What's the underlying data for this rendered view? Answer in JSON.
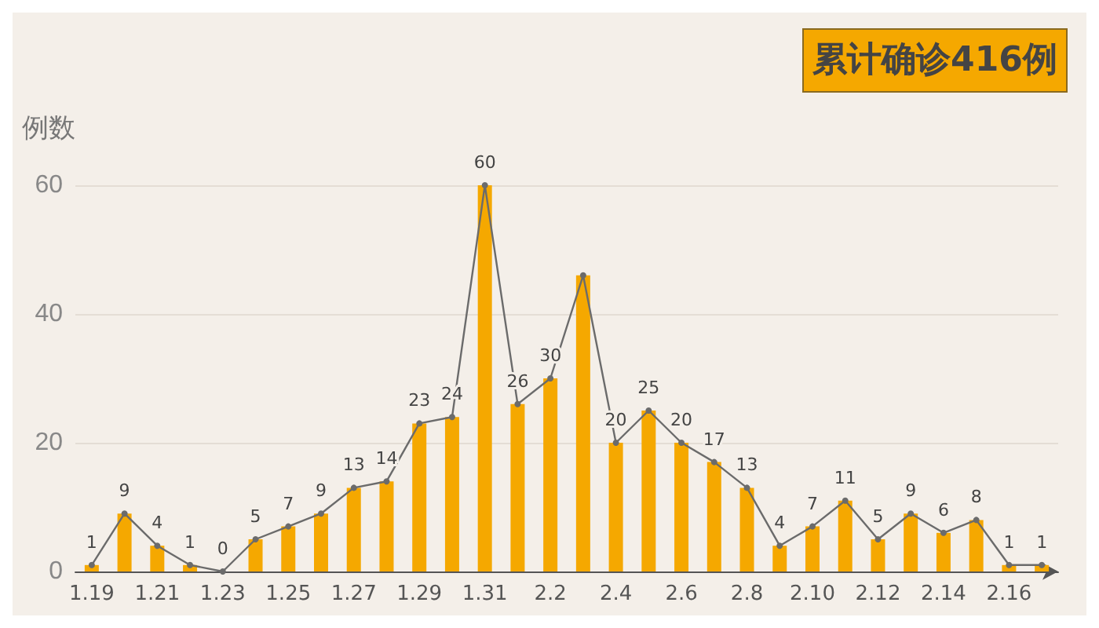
{
  "chart_data": {
    "type": "bar",
    "ylabel": "例数",
    "annotations": [
      "累计确诊416例"
    ],
    "categories": [
      "1.19",
      null,
      "1.21",
      null,
      "1.23",
      null,
      "1.25",
      null,
      "1.27",
      null,
      "1.29",
      null,
      "1.31",
      null,
      "2.2",
      null,
      "2.4",
      null,
      "2.6",
      null,
      "2.8",
      null,
      "2.10",
      null,
      "2.12",
      null,
      "2.14",
      null,
      "2.16",
      null
    ],
    "series": [
      {
        "color": "#f5a800",
        "values": [
          1,
          9,
          4,
          1,
          0,
          5,
          7,
          9,
          13,
          14,
          23,
          24,
          60,
          26,
          30,
          46,
          20,
          25,
          20,
          17,
          13,
          4,
          7,
          11,
          5,
          9,
          6,
          8,
          1,
          1
        ]
      },
      {
        "type": "line",
        "color": "#6b6b6b",
        "values": [
          1,
          9,
          4,
          1,
          0,
          5,
          7,
          9,
          13,
          14,
          23,
          24,
          60,
          26,
          30,
          46,
          20,
          25,
          20,
          17,
          13,
          4,
          7,
          11,
          5,
          9,
          6,
          8,
          1,
          1
        ],
        "value_labels": [
          "1",
          "9",
          "4",
          "1",
          "0",
          "5",
          "7",
          "9",
          "13",
          "14",
          "23",
          "24",
          "60",
          "26",
          "30",
          null,
          "20",
          "25",
          "20",
          "17",
          "13",
          "4",
          "7",
          "11",
          "5",
          "9",
          "6",
          "8",
          "1",
          "1"
        ]
      }
    ],
    "ylim": [
      0,
      60
    ],
    "yticks": [
      0,
      20,
      40,
      60
    ],
    "grid": "y",
    "marker": "circle",
    "line_style": "solid"
  }
}
